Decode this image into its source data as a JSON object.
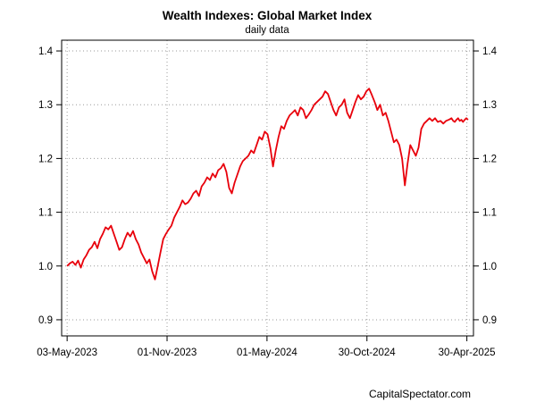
{
  "chart_data": {
    "type": "line",
    "title": "Wealth Indexes: Global Market Index",
    "subtitle": "daily data",
    "credit": "CapitalSpectator.com",
    "xlabel": "",
    "ylabel": "",
    "ylim": [
      0.87,
      1.42
    ],
    "yticks": [
      0.9,
      1.0,
      1.1,
      1.2,
      1.3,
      1.4
    ],
    "ytick_labels": [
      "0.9",
      "1.0",
      "1.1",
      "1.2",
      "1.3",
      "1.4"
    ],
    "xlim": [
      -10,
      740
    ],
    "xticks": [
      0,
      182,
      364,
      546,
      728
    ],
    "xtick_labels": [
      "03-May-2023",
      "01-Nov-2023",
      "01-May-2024",
      "30-Oct-2024",
      "30-Apr-2025"
    ],
    "grid": true,
    "colors": {
      "line": "#e8000b",
      "grid": "#9a9a9a",
      "axis": "#000000"
    },
    "series": [
      {
        "name": "Global Market Index",
        "x": [
          0,
          5,
          10,
          15,
          20,
          25,
          30,
          35,
          40,
          45,
          50,
          55,
          60,
          65,
          70,
          75,
          80,
          85,
          90,
          95,
          100,
          105,
          110,
          115,
          120,
          125,
          130,
          135,
          140,
          145,
          150,
          155,
          160,
          165,
          170,
          175,
          180,
          185,
          190,
          195,
          200,
          205,
          210,
          215,
          220,
          225,
          230,
          235,
          240,
          245,
          250,
          255,
          260,
          265,
          270,
          275,
          280,
          285,
          290,
          295,
          300,
          305,
          310,
          315,
          320,
          325,
          330,
          335,
          340,
          345,
          350,
          355,
          360,
          365,
          370,
          375,
          380,
          385,
          390,
          395,
          400,
          405,
          410,
          415,
          420,
          425,
          430,
          435,
          440,
          445,
          450,
          455,
          460,
          465,
          470,
          475,
          480,
          485,
          490,
          495,
          500,
          505,
          510,
          515,
          520,
          525,
          530,
          535,
          540,
          545,
          550,
          555,
          560,
          565,
          570,
          575,
          580,
          585,
          590,
          595,
          600,
          605,
          610,
          615,
          620,
          625,
          630,
          635,
          640,
          645,
          650,
          655,
          660,
          665,
          670,
          675,
          680,
          685,
          690,
          695,
          700,
          703,
          706,
          709,
          712,
          715,
          718,
          721,
          724,
          727,
          730
        ],
        "values": [
          1.0,
          1.005,
          1.008,
          1.002,
          1.01,
          0.997,
          1.012,
          1.02,
          1.03,
          1.035,
          1.045,
          1.033,
          1.05,
          1.06,
          1.072,
          1.068,
          1.075,
          1.06,
          1.045,
          1.03,
          1.035,
          1.05,
          1.062,
          1.055,
          1.065,
          1.05,
          1.04,
          1.025,
          1.015,
          1.005,
          1.012,
          0.99,
          0.975,
          1.0,
          1.025,
          1.05,
          1.06,
          1.068,
          1.075,
          1.09,
          1.1,
          1.11,
          1.122,
          1.115,
          1.118,
          1.125,
          1.135,
          1.14,
          1.13,
          1.148,
          1.155,
          1.165,
          1.16,
          1.172,
          1.165,
          1.178,
          1.182,
          1.19,
          1.175,
          1.145,
          1.135,
          1.155,
          1.17,
          1.185,
          1.195,
          1.2,
          1.205,
          1.215,
          1.21,
          1.225,
          1.24,
          1.235,
          1.25,
          1.245,
          1.22,
          1.185,
          1.215,
          1.24,
          1.26,
          1.255,
          1.27,
          1.28,
          1.285,
          1.29,
          1.28,
          1.295,
          1.29,
          1.275,
          1.282,
          1.29,
          1.3,
          1.305,
          1.31,
          1.315,
          1.325,
          1.32,
          1.305,
          1.29,
          1.28,
          1.295,
          1.3,
          1.31,
          1.285,
          1.275,
          1.29,
          1.305,
          1.318,
          1.31,
          1.315,
          1.325,
          1.33,
          1.318,
          1.305,
          1.29,
          1.3,
          1.28,
          1.285,
          1.27,
          1.25,
          1.23,
          1.235,
          1.225,
          1.2,
          1.15,
          1.19,
          1.225,
          1.215,
          1.205,
          1.22,
          1.255,
          1.265,
          1.27,
          1.275,
          1.27,
          1.275,
          1.268,
          1.27,
          1.265,
          1.27,
          1.272,
          1.275,
          1.27,
          1.268,
          1.272,
          1.275,
          1.27,
          1.272,
          1.268,
          1.272,
          1.275,
          1.272
        ]
      }
    ]
  }
}
